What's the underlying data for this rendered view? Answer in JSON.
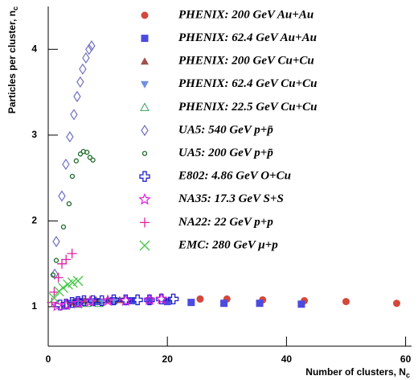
{
  "chart_data": {
    "type": "scatter",
    "x_label": {
      "text": "Number of clusters, N",
      "subscript": "c"
    },
    "y_label": {
      "text": "Particles per cluster, n",
      "subscript": "c"
    },
    "xlim": [
      0,
      61
    ],
    "ylim": [
      0.54,
      4.5
    ],
    "xticks": [
      0,
      20,
      40,
      60
    ],
    "yticks": [
      1,
      2,
      3,
      4
    ],
    "legend": "upper right",
    "series": [
      {
        "name": "PHENIX: 200 GeV Au+Au",
        "color": "#d4473b",
        "marker": "circle",
        "x": [
          25.5,
          30,
          36,
          43,
          50,
          58.5
        ],
        "values": [
          1.09,
          1.09,
          1.08,
          1.07,
          1.06,
          1.04
        ]
      },
      {
        "name": "PHENIX: 62.4 GeV Au+Au",
        "color": "#4b4be0",
        "marker": "square",
        "x": [
          5,
          8,
          11,
          14,
          17,
          20,
          24,
          29.5,
          35.5,
          42.5
        ],
        "values": [
          1.06,
          1.06,
          1.07,
          1.07,
          1.07,
          1.06,
          1.05,
          1.04,
          1.04,
          1.03
        ]
      },
      {
        "name": "PHENIX: 200 GeV Cu+Cu",
        "color": "#a0504a",
        "marker": "triangle-up",
        "x": [
          4,
          6,
          8,
          10,
          12
        ],
        "values": [
          1.05,
          1.07,
          1.08,
          1.08,
          1.08
        ]
      },
      {
        "name": "PHENIX: 62.4 GeV Cu+Cu",
        "color": "#6f8fe0",
        "marker": "triangle-down",
        "x": [
          3.5,
          5,
          7,
          9,
          11
        ],
        "values": [
          1.04,
          1.05,
          1.06,
          1.06,
          1.06
        ]
      },
      {
        "name": "PHENIX: 22.5 GeV Cu+Cu",
        "color": "#3aa05a",
        "marker": "triangle-open",
        "x": [
          3,
          5,
          6.5,
          8.5
        ],
        "values": [
          1.02,
          1.03,
          1.04,
          1.04
        ]
      },
      {
        "name": "UA5: 540 GeV p+p̄",
        "color": "#7070c0",
        "marker": "diamond-open",
        "x": [
          1.08,
          1.35,
          2.29,
          2.96,
          3.63,
          4.31,
          4.85,
          5.38,
          5.79,
          6.33,
          6.86,
          7.27
        ],
        "values": [
          1.38,
          1.76,
          2.29,
          2.66,
          2.98,
          3.24,
          3.45,
          3.62,
          3.77,
          3.9,
          4.0,
          4.04
        ]
      },
      {
        "name": "UA5: 200 GeV p+p̄",
        "color": "#1f6a2a",
        "marker": "circle-small-open",
        "x": [
          0.8,
          1.35,
          2.56,
          3.5,
          4.04,
          4.7,
          5.4,
          5.9,
          6.5,
          7.0,
          7.5
        ],
        "values": [
          1.37,
          1.54,
          1.93,
          2.2,
          2.52,
          2.7,
          2.78,
          2.81,
          2.8,
          2.74,
          2.71
        ]
      },
      {
        "name": "E802: 4.86 GeV O+Cu",
        "color": "#2020c8",
        "marker": "cross-open",
        "x": [
          2,
          3,
          4,
          5,
          6,
          7.5,
          9,
          11,
          13,
          15,
          17,
          19,
          21
        ],
        "values": [
          1.02,
          1.03,
          1.05,
          1.06,
          1.07,
          1.07,
          1.07,
          1.08,
          1.08,
          1.08,
          1.08,
          1.09,
          1.09
        ]
      },
      {
        "name": "NA35: 17.3 GeV S+S",
        "color": "#e020e0",
        "marker": "star-open",
        "x": [
          1.5,
          3,
          5,
          7,
          10,
          13,
          17,
          19
        ],
        "values": [
          1.01,
          1.02,
          1.04,
          1.06,
          1.07,
          1.07,
          1.08,
          1.09
        ]
      },
      {
        "name": "NA22: 22 GeV p+p",
        "color": "#e020a0",
        "marker": "plus",
        "x": [
          0.6,
          1,
          1.7,
          2.3,
          3,
          4
        ],
        "values": [
          1.05,
          1.17,
          1.34,
          1.5,
          1.55,
          1.62
        ]
      },
      {
        "name": "EMC: 280 GeV μ+p",
        "color": "#44c844",
        "marker": "x",
        "x": [
          1,
          1.8,
          2.5,
          3.3,
          4.1,
          5
        ],
        "values": [
          1.1,
          1.18,
          1.22,
          1.26,
          1.28,
          1.3
        ]
      }
    ]
  }
}
